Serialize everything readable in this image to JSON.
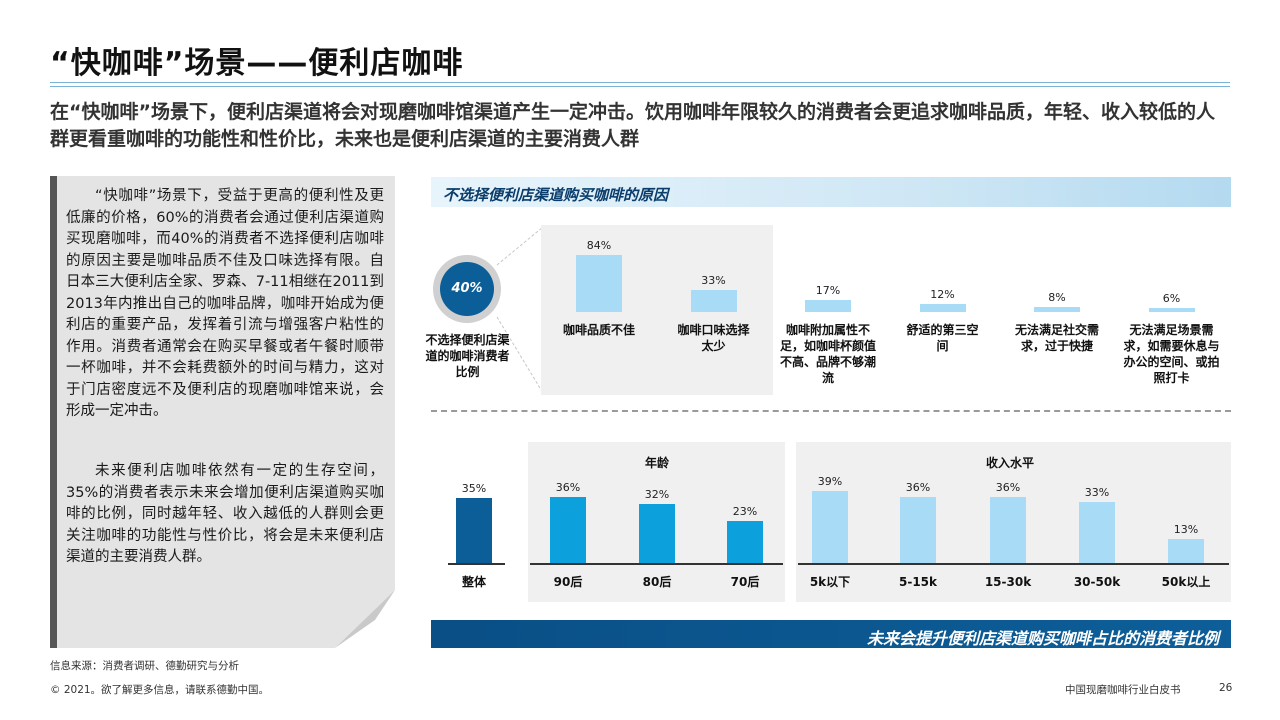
{
  "page": {
    "title": "“快咖啡”场景——便利店咖啡",
    "subtitle": "在“快咖啡”场景下，便利店渠道将会对现磨咖啡馆渠道产生一定冲击。饮用咖啡年限较久的消费者会更追求咖啡品质，年轻、收入较低的人群更看重咖啡的功能性和性价比，未来也是便利店渠道的主要消费人群",
    "note_p1": "“快咖啡”场景下，受益于更高的便利性及更低廉的价格，60%的消费者会通过便利店渠道购买现磨咖啡，而40%的消费者不选择便利店咖啡的原因主要是咖啡品质不佳及口味选择有限。自日本三大便利店全家、罗森、7-11相继在2011到2013年内推出自己的咖啡品牌，咖啡开始成为便利店的重要产品，发挥着引流与增强客户粘性的作用。消费者通常会在购买早餐或者午餐时顺带一杯咖啡，并不会耗费额外的时间与精力，这对于门店密度远不及便利店的现磨咖啡馆来说，会形成一定冲击。",
    "note_p2": "未来便利店咖啡依然有一定的生存空间，35%的消费者表示未来会增加便利店渠道购买咖啡的比例，同时越年轻、收入越低的人群则会更关注咖啡的功能性与性价比，将会是未来便利店渠道的主要消费人群。",
    "source": "信息来源：消费者调研、德勤研究与分析",
    "copyright": "© 2021。欲了解更多信息，请联系德勤中国。",
    "footer_right": "中国现磨咖啡行业白皮书",
    "page_number": "26",
    "colors": {
      "light_blue": "#a7dbf6",
      "mid_blue": "#0ca0dc",
      "dark_blue": "#0b5e98",
      "panel_gray": "#f0f0f0"
    }
  },
  "chart_data": [
    {
      "type": "bar",
      "title": "不选择便利店渠道购买咖啡的原因",
      "callout_value": "40%",
      "callout_label": "不选择便利店渠道的咖啡消费者比例",
      "categories": [
        "咖啡品质不佳",
        "咖啡口味选择太少",
        "咖啡附加属性不足，如咖啡杯颜值不高、品牌不够潮流",
        "舒适的第三空间",
        "无法满足社交需求，过于快捷",
        "无法满足场景需求，如需要休息与办公的空间、或拍照打卡"
      ],
      "values": [
        84,
        33,
        17,
        12,
        8,
        6
      ],
      "value_labels": [
        "84%",
        "33%",
        "17%",
        "12%",
        "8%",
        "6%"
      ],
      "ylim": [
        0,
        100
      ]
    },
    {
      "type": "bar",
      "title": "未来会提升便利店渠道购买咖啡占比的消费者比例",
      "groups": [
        {
          "name": "",
          "categories": [
            "整体"
          ],
          "values": [
            35
          ],
          "value_labels": [
            "35%"
          ]
        },
        {
          "name": "年龄",
          "categories": [
            "90后",
            "80后",
            "70后"
          ],
          "values": [
            36,
            32,
            23
          ],
          "value_labels": [
            "36%",
            "32%",
            "23%"
          ]
        },
        {
          "name": "收入水平",
          "categories": [
            "5k以下",
            "5-15k",
            "15-30k",
            "30-50k",
            "50k以上"
          ],
          "values": [
            39,
            36,
            36,
            33,
            13
          ],
          "value_labels": [
            "39%",
            "36%",
            "36%",
            "33%",
            "13%"
          ]
        }
      ],
      "ylim": [
        0,
        50
      ]
    }
  ]
}
